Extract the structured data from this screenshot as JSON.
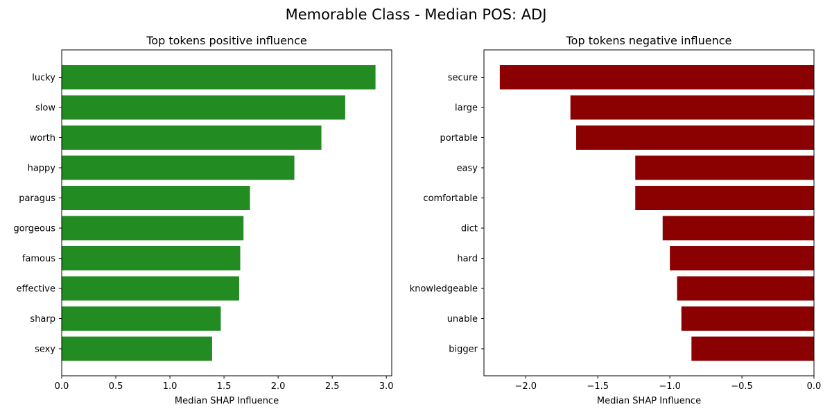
{
  "figure": {
    "title": "Memorable Class - Median POS: ADJ"
  },
  "chart_data": [
    {
      "type": "bar",
      "orientation": "horizontal",
      "title": "Top tokens positive influence",
      "xlabel": "Median SHAP Influence",
      "ylabel": "",
      "categories": [
        "lucky",
        "slow",
        "worth",
        "happy",
        "paragus",
        "gorgeous",
        "famous",
        "effective",
        "sharp",
        "sexy"
      ],
      "values": [
        2.9,
        2.62,
        2.4,
        2.15,
        1.74,
        1.68,
        1.65,
        1.64,
        1.47,
        1.39
      ],
      "xlim": [
        0,
        3.05
      ],
      "xticks": [
        0,
        0.5,
        1,
        1.5,
        2,
        2.5,
        3
      ],
      "xtick_labels": [
        "0.0",
        "0.5",
        "1.0",
        "1.5",
        "2.0",
        "2.5",
        "3.0"
      ],
      "color": "#228b22",
      "grid": false
    },
    {
      "type": "bar",
      "orientation": "horizontal",
      "title": "Top tokens negative influence",
      "xlabel": "Median SHAP Influence",
      "ylabel": "",
      "categories": [
        "secure",
        "large",
        "portable",
        "easy",
        "comfortable",
        "dict",
        "hard",
        "knowledgeable",
        "unable",
        "bigger"
      ],
      "values": [
        -2.18,
        -1.69,
        -1.65,
        -1.24,
        -1.24,
        -1.05,
        -1.0,
        -0.95,
        -0.92,
        -0.85
      ],
      "xlim": [
        -2.29,
        0
      ],
      "xticks": [
        -2,
        -1.5,
        -1,
        -0.5,
        0
      ],
      "xtick_labels": [
        "−2.0",
        "−1.5",
        "−1.0",
        "−0.5",
        "0.0"
      ],
      "color": "#8b0000",
      "grid": false
    }
  ]
}
